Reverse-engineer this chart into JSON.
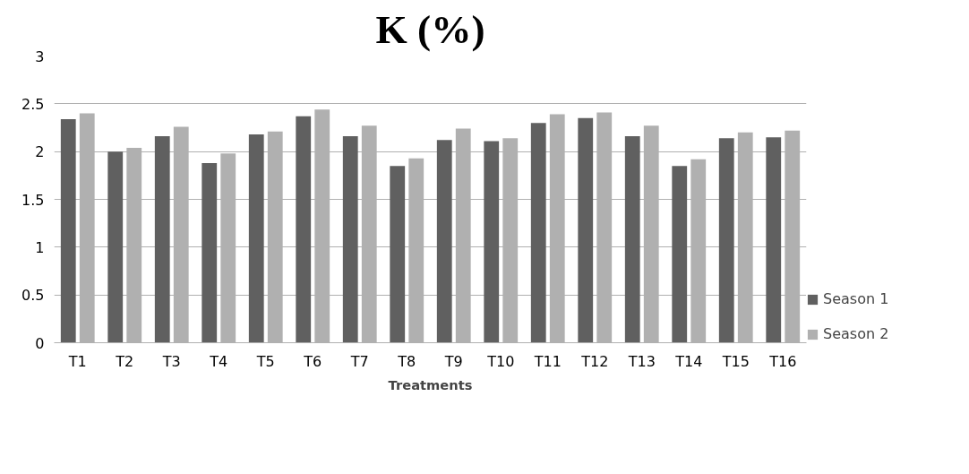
{
  "chart_data": {
    "type": "bar",
    "title": "K (%)",
    "xlabel": "Treatments",
    "categories": [
      "T1",
      "T2",
      "T3",
      "T4",
      "T5",
      "T6",
      "T7",
      "T8",
      "T9",
      "T10",
      "T11",
      "T12",
      "T13",
      "T14",
      "T15",
      "T16"
    ],
    "series": [
      {
        "name": "Season 1",
        "color": "#606060",
        "values": [
          2.34,
          2.0,
          2.16,
          1.88,
          2.18,
          2.37,
          2.16,
          1.85,
          2.12,
          2.11,
          2.3,
          2.35,
          2.16,
          1.85,
          2.14,
          2.15
        ]
      },
      {
        "name": "Season 2",
        "color": "#b0b0b0",
        "values": [
          2.4,
          2.04,
          2.26,
          1.98,
          2.21,
          2.44,
          2.27,
          1.93,
          2.24,
          2.14,
          2.39,
          2.41,
          2.27,
          1.92,
          2.2,
          2.22
        ]
      }
    ],
    "ylim": [
      0,
      3
    ],
    "yticks": [
      0,
      0.5,
      1,
      1.5,
      2,
      2.5,
      3
    ],
    "grid": "y",
    "legend": "bottom right"
  }
}
